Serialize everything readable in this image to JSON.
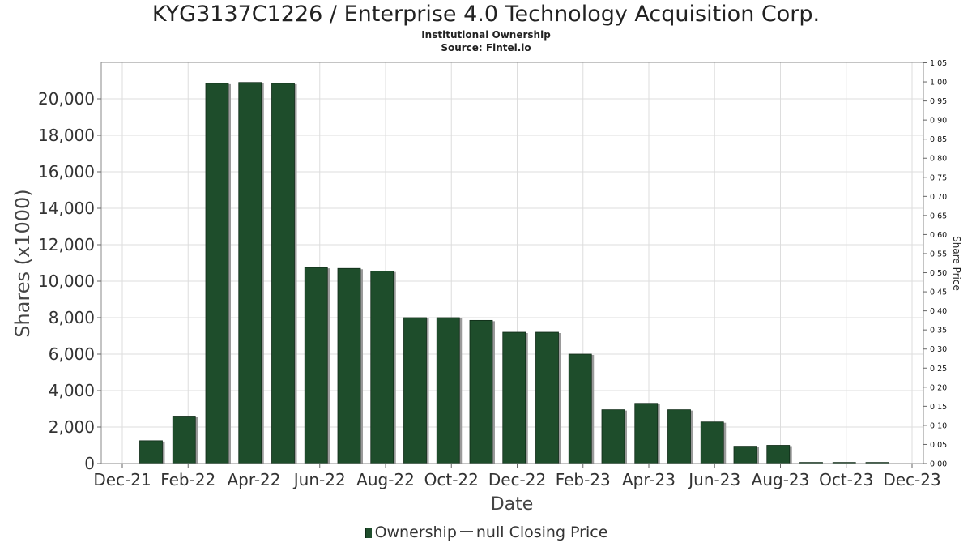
{
  "title": "KYG3137C1226 / Enterprise 4.0 Technology Acquisition Corp.",
  "subtitle": "Institutional Ownership",
  "source": "Source: Fintel.io",
  "legend": {
    "ownership": "Ownership",
    "closing_price": "null Closing Price"
  },
  "colors": {
    "bar": "#1e4d2b",
    "bar_dark": "#0f2a17",
    "bar_shadow": "#9a9a9a",
    "grid": "#dddddd"
  },
  "chart_data": {
    "type": "bar",
    "title": "KYG3137C1226 / Enterprise 4.0 Technology Acquisition Corp.",
    "xlabel": "Date",
    "ylabel": "Shares (x1000)",
    "y2label": "Share Price",
    "ylim": [
      0,
      21000
    ],
    "y2lim": [
      0,
      1.05
    ],
    "x_tick_labels": [
      "Dec-21",
      "Feb-22",
      "Apr-22",
      "Jun-22",
      "Aug-22",
      "Oct-22",
      "Dec-22",
      "Feb-23",
      "Apr-23",
      "Jun-23",
      "Aug-23",
      "Oct-23",
      "Dec-23"
    ],
    "y_tick_labels": [
      "0",
      "2,000",
      "4,000",
      "6,000",
      "8,000",
      "10,000",
      "12,000",
      "14,000",
      "16,000",
      "18,000",
      "20,000"
    ],
    "y2_tick_labels": [
      "0.00",
      "0.05",
      "0.10",
      "0.15",
      "0.20",
      "0.25",
      "0.30",
      "0.35",
      "0.40",
      "0.45",
      "0.50",
      "0.55",
      "0.60",
      "0.65",
      "0.70",
      "0.75",
      "0.80",
      "0.85",
      "0.90",
      "0.95",
      "1.00",
      "1.05"
    ],
    "grid": true,
    "legend_position": "bottom",
    "series": [
      {
        "name": "Ownership",
        "values": [
          1250,
          2600,
          20850,
          20900,
          20850,
          10750,
          10700,
          10550,
          8000,
          8000,
          7850,
          7200,
          7200,
          6000,
          2950,
          3300,
          2950,
          2280,
          950,
          1000,
          60,
          60,
          60
        ]
      }
    ]
  }
}
